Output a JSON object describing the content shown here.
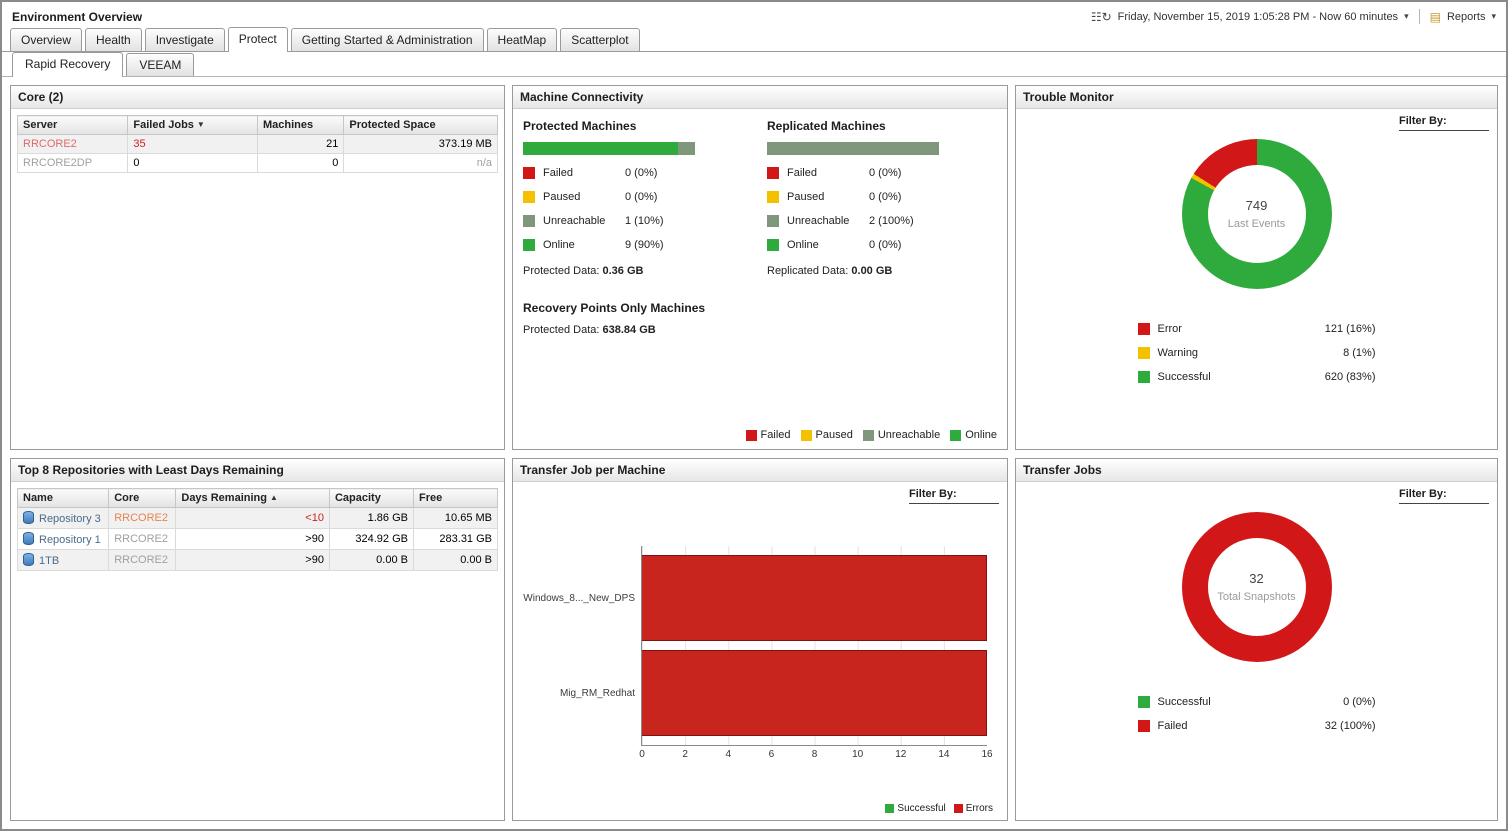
{
  "header": {
    "title": "Environment Overview",
    "time_range": "Friday, November 15, 2019 1:05:28 PM - Now 60 minutes",
    "reports_label": "Reports"
  },
  "tabs": [
    "Overview",
    "Health",
    "Investigate",
    "Protect",
    "Getting Started & Administration",
    "HeatMap",
    "Scatterplot"
  ],
  "subtabs": [
    "Rapid Recovery",
    "VEEAM"
  ],
  "core_panel": {
    "title": "Core (2)",
    "columns": {
      "server": "Server",
      "failed_jobs": "Failed Jobs",
      "machines": "Machines",
      "protected_space": "Protected Space"
    },
    "rows": [
      {
        "server": "RRCORE2",
        "failed_jobs": "35",
        "machines": "21",
        "protected_space": "373.19 MB"
      },
      {
        "server": "RRCORE2DP",
        "failed_jobs": "0",
        "machines": "0",
        "protected_space": "n/a"
      }
    ]
  },
  "machine_connectivity": {
    "title": "Machine Connectivity",
    "protected": {
      "title": "Protected Machines",
      "bar": [
        {
          "color": "#2fab3d",
          "pct": 90
        },
        {
          "color": "#7f987c",
          "pct": 10
        }
      ],
      "legend": [
        {
          "label": "Failed",
          "value": "0 (0%)",
          "color": "#d11717"
        },
        {
          "label": "Paused",
          "value": "0 (0%)",
          "color": "#f2c100"
        },
        {
          "label": "Unreachable",
          "value": "1 (10%)",
          "color": "#7f987c"
        },
        {
          "label": "Online",
          "value": "9 (90%)",
          "color": "#2fab3d"
        }
      ],
      "data_label": "Protected Data:",
      "data_value": "0.36 GB"
    },
    "replicated": {
      "title": "Replicated Machines",
      "bar": [
        {
          "color": "#7f987c",
          "pct": 100
        }
      ],
      "legend": [
        {
          "label": "Failed",
          "value": "0 (0%)",
          "color": "#d11717"
        },
        {
          "label": "Paused",
          "value": "0 (0%)",
          "color": "#f2c100"
        },
        {
          "label": "Unreachable",
          "value": "2 (100%)",
          "color": "#7f987c"
        },
        {
          "label": "Online",
          "value": "0 (0%)",
          "color": "#2fab3d"
        }
      ],
      "data_label": "Replicated Data:",
      "data_value": "0.00 GB"
    },
    "recovery_points": {
      "title": "Recovery Points Only Machines",
      "data_label": "Protected Data:",
      "data_value": "638.84 GB"
    },
    "footer_legend": [
      {
        "label": "Failed",
        "color": "#d11717"
      },
      {
        "label": "Paused",
        "color": "#f2c100"
      },
      {
        "label": "Unreachable",
        "color": "#7f987c"
      },
      {
        "label": "Online",
        "color": "#2fab3d"
      }
    ]
  },
  "trouble_monitor": {
    "title": "Trouble Monitor",
    "filter_label": "Filter By:",
    "donut": {
      "center_value": "749",
      "center_label": "Last Events",
      "segments": [
        {
          "label": "Successful",
          "pct": 83,
          "color": "#2fab3d"
        },
        {
          "label": "Warning",
          "pct": 1,
          "color": "#f2c100"
        },
        {
          "label": "Error",
          "pct": 16,
          "color": "#d11717"
        }
      ]
    },
    "legend": [
      {
        "label": "Error",
        "value": "121 (16%)",
        "color": "#d11717"
      },
      {
        "label": "Warning",
        "value": "8 (1%)",
        "color": "#f2c100"
      },
      {
        "label": "Successful",
        "value": "620 (83%)",
        "color": "#2fab3d"
      }
    ]
  },
  "repositories_panel": {
    "title": "Top 8 Repositories with Least Days Remaining",
    "columns": {
      "name": "Name",
      "core": "Core",
      "days": "Days Remaining",
      "capacity": "Capacity",
      "free": "Free"
    },
    "rows": [
      {
        "name": "Repository 3",
        "core": "RRCORE2",
        "days": "<10",
        "capacity": "1.86 GB",
        "free": "10.65 MB"
      },
      {
        "name": "Repository 1",
        "core": "RRCORE2",
        "days": ">90",
        "capacity": "324.92 GB",
        "free": "283.31 GB"
      },
      {
        "name": "1TB",
        "core": "RRCORE2",
        "days": ">90",
        "capacity": "0.00 B",
        "free": "0.00 B"
      }
    ]
  },
  "transfer_job_panel": {
    "title": "Transfer Job per Machine",
    "filter_label": "Filter By:",
    "chart": {
      "type": "bar",
      "orientation": "horizontal",
      "bar_color": "#c8251f",
      "categories": [
        "Windows_8..._New_DPS",
        "Mig_RM_Redhat"
      ],
      "values": [
        16,
        16
      ],
      "bars": [
        {
          "pct": 100
        },
        {
          "pct": 100
        }
      ],
      "xticks": [
        "0",
        "2",
        "4",
        "6",
        "8",
        "10",
        "12",
        "14",
        "16"
      ],
      "xlim": [
        0,
        16
      ],
      "legend": [
        {
          "label": "Successful",
          "color": "#2fab3d"
        },
        {
          "label": "Errors",
          "color": "#d11717"
        }
      ]
    }
  },
  "transfer_jobs_panel": {
    "title": "Transfer Jobs",
    "filter_label": "Filter By:",
    "donut": {
      "center_value": "32",
      "center_label": "Total Snapshots",
      "segments": [
        {
          "label": "Failed",
          "pct": 100,
          "color": "#d11717"
        }
      ]
    },
    "legend": [
      {
        "label": "Successful",
        "value": "0 (0%)",
        "color": "#2fab3d"
      },
      {
        "label": "Failed",
        "value": "32 (100%)",
        "color": "#d11717"
      }
    ]
  }
}
